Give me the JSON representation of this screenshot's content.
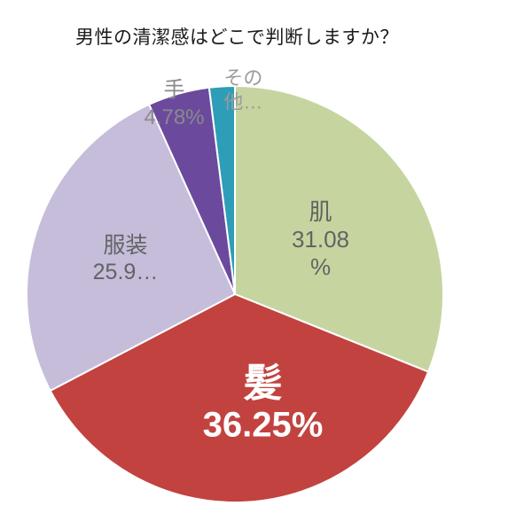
{
  "chart_data": {
    "type": "pie",
    "title": "男性の清潔感はどこで判断しますか？",
    "legend_position": "none",
    "background": "#ffffff",
    "start_angle_deg": 0,
    "direction": "clockwise",
    "slices": [
      {
        "label": "肌",
        "value": 31.08,
        "display": "31.08%",
        "label_lines": [
          "肌",
          "31.08",
          "%"
        ],
        "color": "#c6d5a0",
        "label_color": "#636363"
      },
      {
        "label": "髪",
        "value": 36.25,
        "display": "36.25%",
        "label_lines": [
          "髪",
          "36.25%"
        ],
        "color": "#c2423f",
        "label_color": "#ffffff"
      },
      {
        "label": "服装",
        "value": 25.91,
        "display": "25.9…",
        "label_lines": [
          "服装",
          "25.9…"
        ],
        "color": "#c6bddb",
        "label_color": "#636363"
      },
      {
        "label": "手",
        "value": 4.78,
        "display": "4.78%",
        "label_lines": [
          "手",
          "4.78%"
        ],
        "color": "#6b4a9d",
        "label_color": "#8a8a8a"
      },
      {
        "label": "その他",
        "value": 1.98,
        "display": "その他…",
        "label_lines": [
          "その",
          "他…"
        ],
        "color": "#2e9db8",
        "label_color": "#9b9b9b"
      }
    ]
  }
}
